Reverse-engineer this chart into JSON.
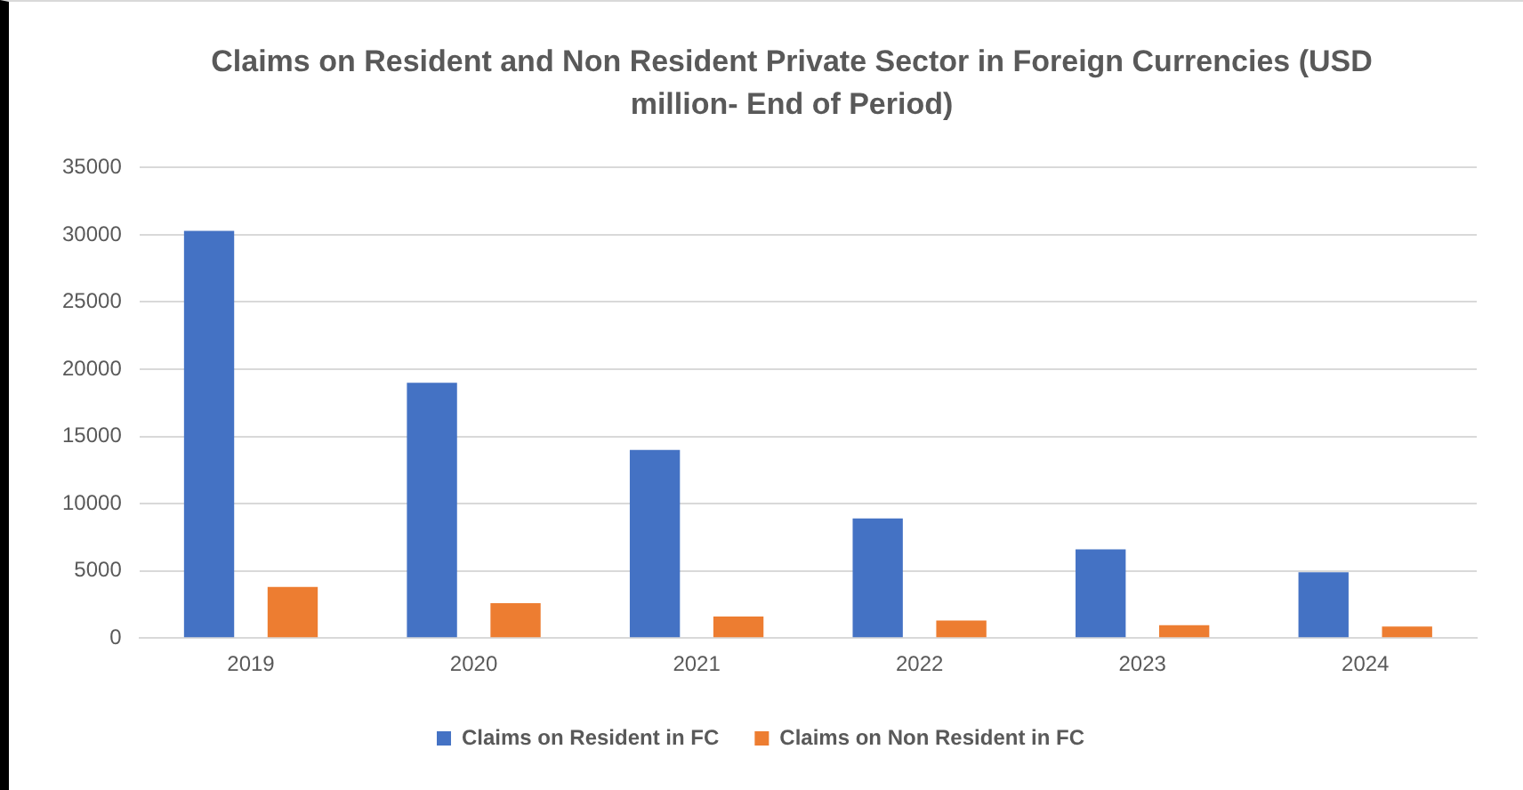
{
  "chart_data": {
    "type": "bar",
    "title": "Claims on Resident and Non Resident Private Sector in Foreign Currencies (USD million- End of Period)",
    "categories": [
      "2019",
      "2020",
      "2021",
      "2022",
      "2023",
      "2024"
    ],
    "series": [
      {
        "name": "Claims on Resident in FC",
        "color": "#4472c4",
        "values": [
          30300,
          19000,
          14000,
          8900,
          6600,
          4900
        ]
      },
      {
        "name": "Claims on Non Resident in FC",
        "color": "#ed7d31",
        "values": [
          3800,
          2600,
          1600,
          1300,
          950,
          860
        ]
      }
    ],
    "ylim": [
      0,
      35000
    ],
    "yticks": [
      0,
      5000,
      10000,
      15000,
      20000,
      25000,
      30000,
      35000
    ],
    "grid": "y",
    "legend": "bottom"
  }
}
